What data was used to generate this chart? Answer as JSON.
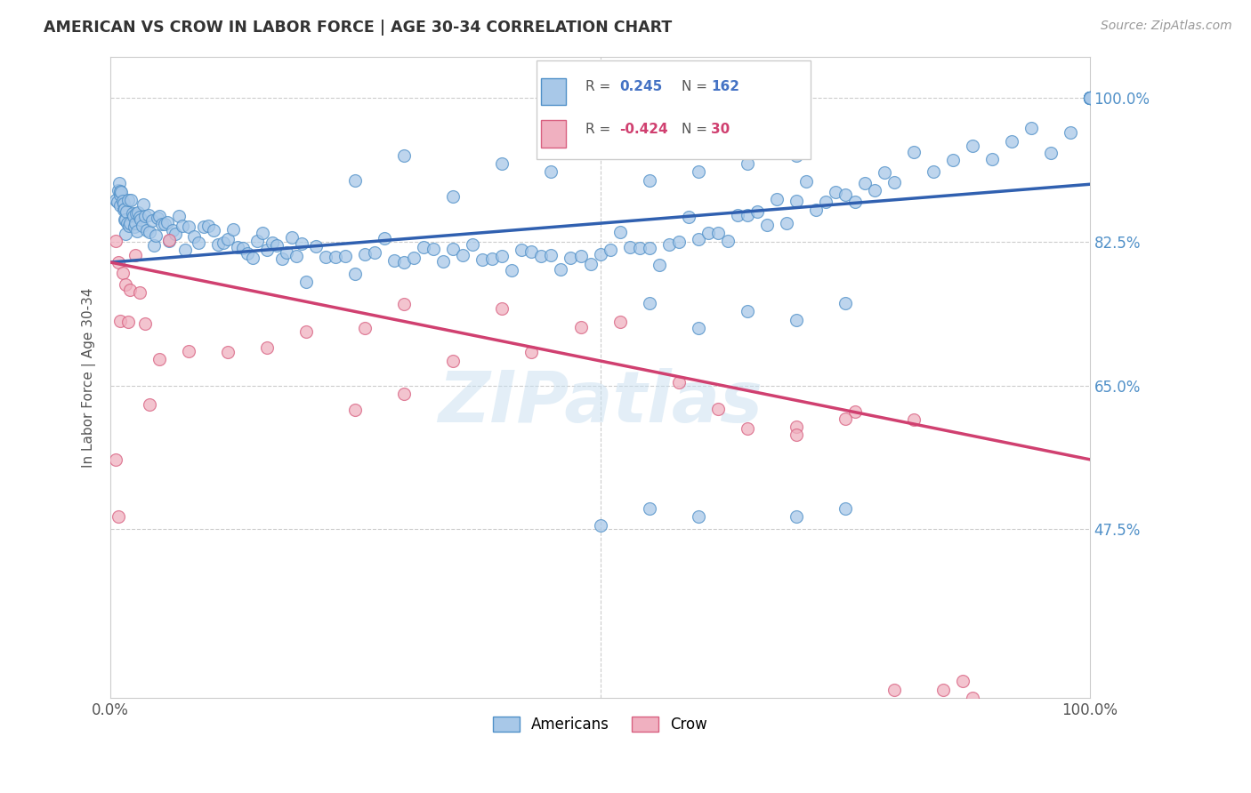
{
  "title": "AMERICAN VS CROW IN LABOR FORCE | AGE 30-34 CORRELATION CHART",
  "source": "Source: ZipAtlas.com",
  "ylabel": "In Labor Force | Age 30-34",
  "yticks": [
    "100.0%",
    "82.5%",
    "65.0%",
    "47.5%"
  ],
  "ytick_vals": [
    1.0,
    0.825,
    0.65,
    0.475
  ],
  "legend_american_R": "0.245",
  "legend_american_N": "162",
  "legend_crow_R": "-0.424",
  "legend_crow_N": "30",
  "blue_fill": "#a8c8e8",
  "blue_edge": "#5090c8",
  "pink_fill": "#f0b0c0",
  "pink_edge": "#d86080",
  "blue_line": "#3060b0",
  "pink_line": "#d04070",
  "watermark": "ZIPatlas",
  "am_x": [
    0.005,
    0.007,
    0.008,
    0.009,
    0.01,
    0.01,
    0.01,
    0.011,
    0.012,
    0.013,
    0.013,
    0.014,
    0.014,
    0.015,
    0.015,
    0.016,
    0.017,
    0.018,
    0.019,
    0.02,
    0.021,
    0.022,
    0.023,
    0.024,
    0.025,
    0.026,
    0.027,
    0.028,
    0.03,
    0.031,
    0.032,
    0.033,
    0.035,
    0.037,
    0.039,
    0.04,
    0.042,
    0.044,
    0.046,
    0.048,
    0.05,
    0.052,
    0.055,
    0.058,
    0.06,
    0.063,
    0.066,
    0.07,
    0.073,
    0.076,
    0.08,
    0.085,
    0.09,
    0.095,
    0.1,
    0.105,
    0.11,
    0.115,
    0.12,
    0.125,
    0.13,
    0.135,
    0.14,
    0.145,
    0.15,
    0.155,
    0.16,
    0.165,
    0.17,
    0.175,
    0.18,
    0.185,
    0.19,
    0.195,
    0.2,
    0.21,
    0.22,
    0.23,
    0.24,
    0.25,
    0.26,
    0.27,
    0.28,
    0.29,
    0.3,
    0.31,
    0.32,
    0.33,
    0.34,
    0.35,
    0.36,
    0.37,
    0.38,
    0.39,
    0.4,
    0.41,
    0.42,
    0.43,
    0.44,
    0.45,
    0.46,
    0.47,
    0.48,
    0.49,
    0.5,
    0.51,
    0.52,
    0.53,
    0.54,
    0.55,
    0.56,
    0.57,
    0.58,
    0.59,
    0.6,
    0.61,
    0.62,
    0.63,
    0.64,
    0.65,
    0.66,
    0.67,
    0.68,
    0.69,
    0.7,
    0.71,
    0.72,
    0.73,
    0.74,
    0.75,
    0.76,
    0.77,
    0.78,
    0.79,
    0.8,
    0.82,
    0.84,
    0.86,
    0.88,
    0.9,
    0.92,
    0.94,
    0.96,
    0.98,
    1.0,
    1.0,
    1.0,
    1.0,
    1.0,
    1.0,
    1.0,
    1.0,
    1.0,
    1.0,
    1.0,
    1.0,
    1.0,
    1.0,
    1.0,
    1.0,
    1.0,
    1.0
  ],
  "am_y": [
    0.87,
    0.875,
    0.88,
    0.878,
    0.885,
    0.872,
    0.868,
    0.876,
    0.88,
    0.865,
    0.87,
    0.858,
    0.862,
    0.875,
    0.855,
    0.868,
    0.86,
    0.872,
    0.855,
    0.865,
    0.858,
    0.862,
    0.856,
    0.86,
    0.854,
    0.858,
    0.852,
    0.856,
    0.862,
    0.856,
    0.852,
    0.848,
    0.856,
    0.852,
    0.848,
    0.852,
    0.848,
    0.844,
    0.848,
    0.852,
    0.848,
    0.844,
    0.848,
    0.852,
    0.844,
    0.848,
    0.84,
    0.844,
    0.84,
    0.836,
    0.84,
    0.836,
    0.832,
    0.836,
    0.832,
    0.828,
    0.832,
    0.828,
    0.824,
    0.828,
    0.824,
    0.82,
    0.824,
    0.82,
    0.816,
    0.82,
    0.816,
    0.812,
    0.816,
    0.812,
    0.808,
    0.812,
    0.808,
    0.804,
    0.808,
    0.81,
    0.806,
    0.81,
    0.806,
    0.81,
    0.812,
    0.808,
    0.812,
    0.808,
    0.81,
    0.812,
    0.808,
    0.812,
    0.808,
    0.81,
    0.808,
    0.81,
    0.812,
    0.808,
    0.812,
    0.808,
    0.812,
    0.81,
    0.808,
    0.812,
    0.808,
    0.81,
    0.812,
    0.808,
    0.812,
    0.81,
    0.814,
    0.816,
    0.814,
    0.818,
    0.82,
    0.822,
    0.824,
    0.826,
    0.83,
    0.832,
    0.836,
    0.84,
    0.844,
    0.848,
    0.852,
    0.856,
    0.86,
    0.864,
    0.868,
    0.872,
    0.876,
    0.88,
    0.884,
    0.888,
    0.892,
    0.896,
    0.9,
    0.904,
    0.908,
    0.916,
    0.92,
    0.928,
    0.932,
    0.94,
    0.944,
    0.948,
    0.952,
    0.956,
    1.0,
    1.0,
    1.0,
    1.0,
    1.0,
    1.0,
    1.0,
    1.0,
    1.0,
    1.0,
    1.0,
    1.0,
    1.0,
    1.0,
    1.0,
    1.0,
    1.0,
    1.0
  ],
  "crow_x": [
    0.005,
    0.008,
    0.01,
    0.012,
    0.015,
    0.018,
    0.02,
    0.025,
    0.03,
    0.035,
    0.04,
    0.05,
    0.06,
    0.08,
    0.12,
    0.16,
    0.2,
    0.26,
    0.3,
    0.35,
    0.4,
    0.43,
    0.48,
    0.52,
    0.58,
    0.62,
    0.65,
    0.7,
    0.76,
    0.82
  ],
  "crow_y": [
    0.82,
    0.78,
    0.76,
    0.82,
    0.76,
    0.72,
    0.76,
    0.8,
    0.78,
    0.72,
    0.62,
    0.7,
    0.78,
    0.68,
    0.72,
    0.68,
    0.74,
    0.7,
    0.72,
    0.7,
    0.72,
    0.68,
    0.7,
    0.68,
    0.66,
    0.64,
    0.62,
    0.62,
    0.62,
    0.6
  ]
}
